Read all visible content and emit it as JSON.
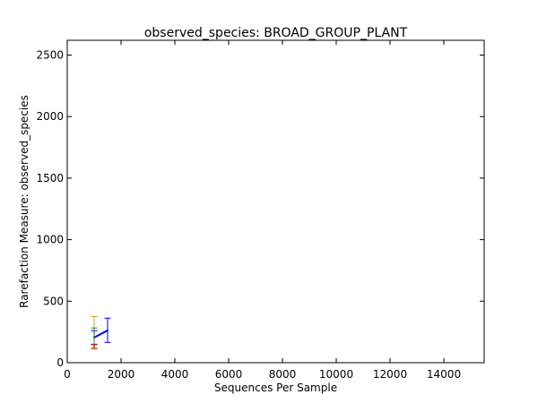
{
  "chart_data": {
    "type": "line",
    "title": "observed_species: BROAD_GROUP_PLANT",
    "xlabel": "Sequences Per Sample",
    "ylabel": "Rarefaction Measure: observed_species",
    "xlim": [
      0,
      15500
    ],
    "ylim": [
      0,
      2620
    ],
    "x_ticks": [
      0,
      2000,
      4000,
      6000,
      8000,
      10000,
      12000,
      14000
    ],
    "y_ticks": [
      0,
      500,
      1000,
      1500,
      2000,
      2500
    ],
    "grid": false,
    "legend": "none",
    "series": [
      {
        "color": "#0000ff",
        "points": [
          {
            "x": 1000,
            "y": 205,
            "err_low": 150,
            "err_high": 260
          },
          {
            "x": 1500,
            "y": 262,
            "err_low": 165,
            "err_high": 362
          }
        ]
      },
      {
        "color": "#d4a020",
        "points": [
          {
            "x": 1000,
            "y": 242,
            "err_low": 110,
            "err_high": 375
          }
        ]
      },
      {
        "color": "#2e8b2e",
        "points": [
          {
            "x": 1000,
            "y": 212,
            "err_low": 145,
            "err_high": 282
          }
        ]
      },
      {
        "color": "#cc2222",
        "points": [
          {
            "x": 1000,
            "y": 132,
            "err_low": 118,
            "err_high": 148
          }
        ]
      }
    ]
  }
}
